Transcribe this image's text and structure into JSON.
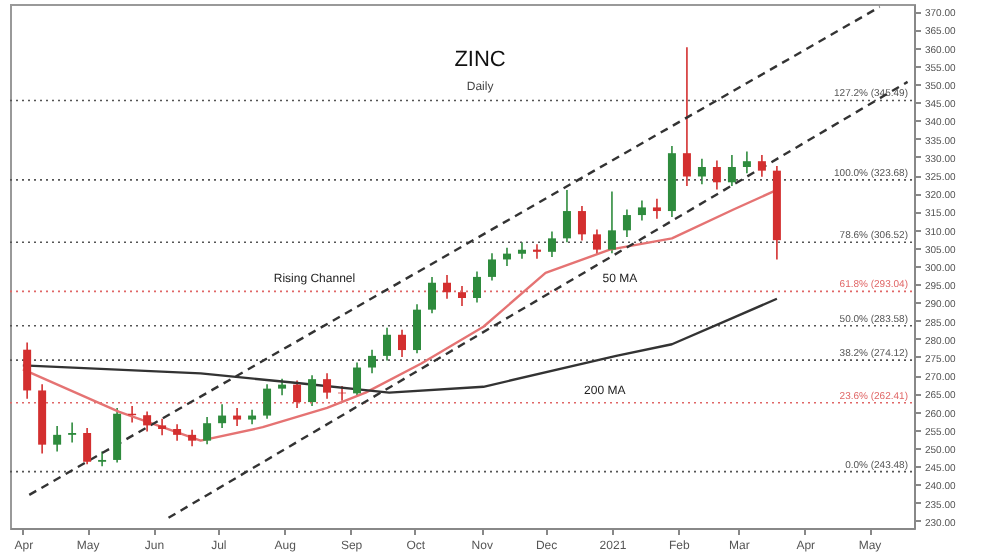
{
  "chart_data": {
    "type": "candlestick",
    "title": "ZINC",
    "subtitle": "Daily",
    "x": [
      "2020-04-03",
      "2020-04-10",
      "2020-04-17",
      "2020-04-24",
      "2020-05-01",
      "2020-05-08",
      "2020-05-15",
      "2020-05-22",
      "2020-05-29",
      "2020-06-05",
      "2020-06-12",
      "2020-06-19",
      "2020-06-26",
      "2020-07-03",
      "2020-07-10",
      "2020-07-17",
      "2020-07-24",
      "2020-07-31",
      "2020-08-07",
      "2020-08-14",
      "2020-08-21",
      "2020-08-28",
      "2020-09-04",
      "2020-09-11",
      "2020-09-18",
      "2020-09-25",
      "2020-10-02",
      "2020-10-09",
      "2020-10-16",
      "2020-10-23",
      "2020-10-30",
      "2020-11-06",
      "2020-11-13",
      "2020-11-20",
      "2020-11-27",
      "2020-12-04",
      "2020-12-11",
      "2020-12-18",
      "2020-12-25",
      "2021-01-01",
      "2021-01-08",
      "2021-01-15",
      "2021-01-22",
      "2021-01-29",
      "2021-02-05",
      "2021-02-12",
      "2021-02-19",
      "2021-02-26",
      "2021-03-05",
      "2021-03-12",
      "2021-03-19"
    ],
    "ohlc": [
      [
        277.0,
        279.0,
        263.5,
        265.8
      ],
      [
        265.8,
        267.5,
        248.5,
        250.9
      ],
      [
        250.9,
        256.0,
        249.0,
        253.6
      ],
      [
        253.6,
        257.0,
        251.5,
        254.1
      ],
      [
        254.1,
        255.5,
        245.5,
        246.2
      ],
      [
        246.2,
        249.0,
        245.0,
        246.7
      ],
      [
        246.7,
        261.0,
        246.0,
        259.4
      ],
      [
        259.4,
        261.5,
        257.0,
        259.0
      ],
      [
        259.0,
        260.0,
        254.5,
        256.2
      ],
      [
        256.2,
        258.0,
        253.5,
        255.2
      ],
      [
        255.2,
        256.5,
        252.0,
        253.6
      ],
      [
        253.6,
        255.0,
        250.5,
        252.0
      ],
      [
        252.0,
        258.5,
        251.0,
        256.8
      ],
      [
        256.8,
        262.0,
        255.5,
        258.9
      ],
      [
        258.9,
        261.0,
        256.0,
        257.8
      ],
      [
        257.8,
        260.5,
        256.5,
        258.9
      ],
      [
        258.9,
        267.5,
        258.0,
        266.3
      ],
      [
        266.3,
        269.0,
        264.5,
        267.4
      ],
      [
        267.4,
        268.5,
        261.0,
        262.6
      ],
      [
        262.6,
        270.0,
        261.5,
        268.9
      ],
      [
        268.9,
        270.5,
        263.5,
        265.2
      ],
      [
        265.2,
        267.0,
        263.0,
        265.0
      ],
      [
        265.0,
        273.5,
        264.0,
        272.1
      ],
      [
        272.1,
        277.0,
        270.5,
        275.3
      ],
      [
        275.3,
        283.0,
        274.0,
        281.1
      ],
      [
        281.1,
        282.5,
        275.0,
        276.9
      ],
      [
        276.9,
        289.5,
        276.0,
        288.0
      ],
      [
        288.0,
        297.0,
        287.0,
        295.4
      ],
      [
        295.4,
        297.5,
        291.0,
        292.8
      ],
      [
        292.8,
        294.5,
        289.0,
        291.2
      ],
      [
        291.2,
        298.5,
        290.0,
        297.0
      ],
      [
        297.0,
        303.5,
        296.0,
        301.8
      ],
      [
        301.8,
        305.0,
        300.0,
        303.4
      ],
      [
        303.4,
        306.5,
        302.0,
        304.5
      ],
      [
        304.5,
        306.0,
        302.0,
        303.9
      ],
      [
        303.9,
        309.5,
        302.5,
        307.6
      ],
      [
        307.6,
        320.9,
        306.5,
        315.1
      ],
      [
        315.1,
        316.5,
        307.0,
        308.7
      ],
      [
        308.7,
        310.0,
        303.0,
        304.5
      ],
      [
        304.5,
        320.5,
        303.5,
        309.8
      ],
      [
        309.8,
        315.5,
        308.0,
        314.0
      ],
      [
        314.0,
        318.0,
        312.5,
        316.1
      ],
      [
        316.1,
        318.5,
        313.0,
        315.1
      ],
      [
        315.1,
        333.0,
        313.5,
        331.0
      ],
      [
        331.0,
        360.1,
        322.0,
        324.6
      ],
      [
        324.6,
        329.5,
        322.5,
        327.2
      ],
      [
        327.2,
        329.0,
        321.0,
        323.0
      ],
      [
        323.0,
        330.5,
        322.0,
        327.2
      ],
      [
        327.2,
        331.5,
        325.5,
        328.8
      ],
      [
        328.8,
        330.5,
        324.5,
        326.2
      ],
      [
        326.2,
        327.5,
        301.8,
        307.1
      ]
    ],
    "colors": [
      "#d32f2f",
      "#d32f2f",
      "#2e8b3d",
      "#2e8b3d",
      "#d32f2f",
      "#2e8b3d",
      "#2e8b3d",
      "#d32f2f",
      "#d32f2f",
      "#d32f2f",
      "#d32f2f",
      "#d32f2f",
      "#2e8b3d",
      "#2e8b3d",
      "#d32f2f",
      "#2e8b3d",
      "#2e8b3d",
      "#2e8b3d",
      "#d32f2f",
      "#2e8b3d",
      "#d32f2f",
      "#d32f2f",
      "#2e8b3d",
      "#2e8b3d",
      "#2e8b3d",
      "#d32f2f",
      "#2e8b3d",
      "#2e8b3d",
      "#d32f2f",
      "#d32f2f",
      "#2e8b3d",
      "#2e8b3d",
      "#2e8b3d",
      "#2e8b3d",
      "#d32f2f",
      "#2e8b3d",
      "#2e8b3d",
      "#d32f2f",
      "#d32f2f",
      "#2e8b3d",
      "#2e8b3d",
      "#2e8b3d",
      "#d32f2f",
      "#2e8b3d",
      "#d32f2f",
      "#2e8b3d",
      "#d32f2f",
      "#2e8b3d",
      "#2e8b3d",
      "#d32f2f",
      "#d32f2f"
    ],
    "series": [
      {
        "type": "line",
        "color": "#e57373",
        "line_style": "solid",
        "x": [
          "2020-04-01",
          "2020-05-16",
          "2020-06-23",
          "2020-07-22",
          "2020-08-21",
          "2020-09-08",
          "2020-10-04",
          "2020-11-02",
          "2020-12-01",
          "2020-12-31",
          "2021-01-29",
          "2021-02-27",
          "2021-03-19"
        ],
        "values": [
          271.6,
          259.9,
          252.0,
          255.7,
          261.0,
          265.2,
          273.2,
          283.3,
          298.1,
          304.5,
          307.6,
          315.6,
          320.9
        ]
      },
      {
        "type": "line",
        "color": "#333333",
        "line_style": "solid",
        "x": [
          "2020-04-01",
          "2020-06-23",
          "2020-08-06",
          "2020-09-19",
          "2020-11-02",
          "2021-01-03",
          "2021-01-29",
          "2021-02-27",
          "2021-03-19"
        ],
        "values": [
          272.7,
          270.5,
          267.9,
          265.2,
          266.8,
          275.3,
          278.5,
          285.9,
          291.0
        ]
      },
      {
        "type": "line",
        "color": "#333333",
        "line_style": "dashed",
        "x": [
          "2020-04-04",
          "2021-05-06"
        ],
        "values": [
          237.1,
          371.2
        ]
      },
      {
        "type": "line",
        "color": "#333333",
        "line_style": "dashed",
        "x": [
          "2020-06-08",
          "2021-05-19"
        ],
        "values": [
          230.8,
          350.6
        ]
      }
    ],
    "ref_lines": [
      {
        "axis": "y",
        "value": 345.49,
        "label": "127.2% (345.49)",
        "color": "#555555",
        "line_style": "dotted"
      },
      {
        "axis": "y",
        "value": 323.68,
        "label": "100.0% (323.68)",
        "color": "#555555",
        "line_style": "dotted"
      },
      {
        "axis": "y",
        "value": 306.52,
        "label": "78.6% (306.52)",
        "color": "#555555",
        "line_style": "dotted"
      },
      {
        "axis": "y",
        "value": 293.04,
        "label": "61.8% (293.04)",
        "color": "#e06666",
        "line_style": "dotted"
      },
      {
        "axis": "y",
        "value": 283.58,
        "label": "50.0% (283.58)",
        "color": "#555555",
        "line_style": "dotted"
      },
      {
        "axis": "y",
        "value": 274.12,
        "label": "38.2% (274.12)",
        "color": "#555555",
        "line_style": "dotted"
      },
      {
        "axis": "y",
        "value": 262.41,
        "label": "23.6% (262.41)",
        "color": "#e06666",
        "line_style": "dotted"
      },
      {
        "axis": "y",
        "value": 243.48,
        "label": "0.0% (243.48)",
        "color": "#555555",
        "line_style": "dotted"
      }
    ],
    "annotations": [
      {
        "text": "Rising Channel",
        "x": "2020-09-14",
        "y": 292.3
      },
      {
        "text": "50 MA",
        "x": "2021-01-01",
        "y": 304.5
      },
      {
        "text": "200 MA",
        "x": "2021-01-07",
        "y": 275.8
      }
    ],
    "xlim": [
      "2020-03-26",
      "2021-05-22"
    ],
    "xticks": [
      {
        "value": "2020-04-01",
        "label": "Apr"
      },
      {
        "value": "2020-05-01",
        "label": "May"
      },
      {
        "value": "2020-06-01",
        "label": "Jun"
      },
      {
        "value": "2020-07-01",
        "label": "Jul"
      },
      {
        "value": "2020-08-01",
        "label": "Aug"
      },
      {
        "value": "2020-09-01",
        "label": "Sep"
      },
      {
        "value": "2020-10-01",
        "label": "Oct"
      },
      {
        "value": "2020-11-01",
        "label": "Nov"
      },
      {
        "value": "2020-12-01",
        "label": "Dec"
      },
      {
        "value": "2021-01-01",
        "label": "2021"
      },
      {
        "value": "2021-02-01",
        "label": "Feb"
      },
      {
        "value": "2021-03-01",
        "label": "Mar"
      },
      {
        "value": "2021-04-01",
        "label": "Apr"
      },
      {
        "value": "2021-05-01",
        "label": "May"
      }
    ],
    "ylim": [
      228,
      372
    ],
    "yticks": [
      {
        "value": 230,
        "label": "230.00"
      },
      {
        "value": 235,
        "label": "235.00"
      },
      {
        "value": 240,
        "label": "240.00"
      },
      {
        "value": 245,
        "label": "245.00"
      },
      {
        "value": 250,
        "label": "250.00"
      },
      {
        "value": 255,
        "label": "255.00"
      },
      {
        "value": 260,
        "label": "260.00"
      },
      {
        "value": 265,
        "label": "265.00"
      },
      {
        "value": 270,
        "label": "270.00"
      },
      {
        "value": 275,
        "label": "275.00"
      },
      {
        "value": 280,
        "label": "280.00"
      },
      {
        "value": 285,
        "label": "285.00"
      },
      {
        "value": 290,
        "label": "290.00"
      },
      {
        "value": 295,
        "label": "295.00"
      },
      {
        "value": 300,
        "label": "300.00"
      },
      {
        "value": 305,
        "label": "305.00"
      },
      {
        "value": 310,
        "label": "310.00"
      },
      {
        "value": 315,
        "label": "315.00"
      },
      {
        "value": 320,
        "label": "320.00"
      },
      {
        "value": 325,
        "label": "325.00"
      },
      {
        "value": 330,
        "label": "330.00"
      },
      {
        "value": 335,
        "label": "335.00"
      },
      {
        "value": 340,
        "label": "340.00"
      },
      {
        "value": 345,
        "label": "345.00"
      },
      {
        "value": 350,
        "label": "350.00"
      },
      {
        "value": 355,
        "label": "355.00"
      },
      {
        "value": 360,
        "label": "360.00"
      },
      {
        "value": 365,
        "label": "365.00"
      },
      {
        "value": 370,
        "label": "370.00"
      }
    ]
  }
}
